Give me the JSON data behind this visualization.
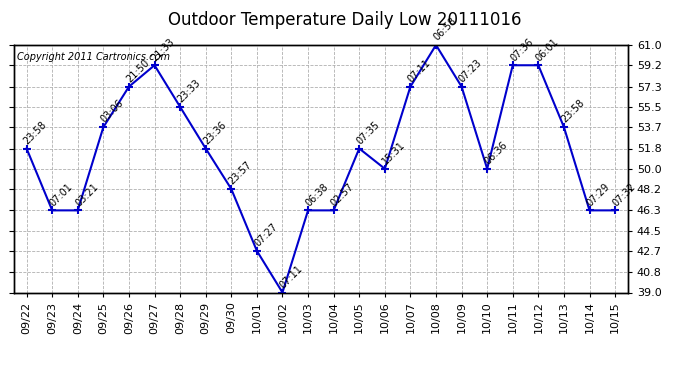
{
  "title": "Outdoor Temperature Daily Low 20111016",
  "copyright": "Copyright 2011 Cartronics.com",
  "dates": [
    "09/22",
    "09/23",
    "09/24",
    "09/25",
    "09/26",
    "09/27",
    "09/28",
    "09/29",
    "09/30",
    "10/01",
    "10/02",
    "10/03",
    "10/04",
    "10/05",
    "10/06",
    "10/07",
    "10/08",
    "10/09",
    "10/10",
    "10/11",
    "10/12",
    "10/13",
    "10/14",
    "10/15"
  ],
  "values": [
    51.8,
    46.3,
    46.3,
    53.7,
    57.3,
    59.2,
    55.5,
    51.8,
    48.2,
    42.7,
    39.0,
    46.3,
    46.3,
    51.8,
    50.0,
    57.3,
    61.0,
    57.3,
    50.0,
    59.2,
    59.2,
    53.7,
    46.3,
    46.3
  ],
  "labels": [
    "23:58",
    "07:01",
    "03:21",
    "03:06",
    "21:50",
    "21:33",
    "23:33",
    "23:36",
    "23:57",
    "07:27",
    "07:11",
    "06:38",
    "02:57",
    "07:35",
    "15:31",
    "07:11",
    "06:58",
    "07:23",
    "06:36",
    "07:36",
    "06:01",
    "23:58",
    "07:29",
    "07:32"
  ],
  "ylim": [
    39.0,
    61.0
  ],
  "yticks": [
    39.0,
    40.8,
    42.7,
    44.5,
    46.3,
    48.2,
    50.0,
    51.8,
    53.7,
    55.5,
    57.3,
    59.2,
    61.0
  ],
  "line_color": "#0000cc",
  "marker_color": "#0000cc",
  "bg_color": "#ffffff",
  "grid_color": "#b0b0b0",
  "title_fontsize": 12,
  "label_fontsize": 7,
  "copyright_fontsize": 7,
  "tick_fontsize": 8
}
